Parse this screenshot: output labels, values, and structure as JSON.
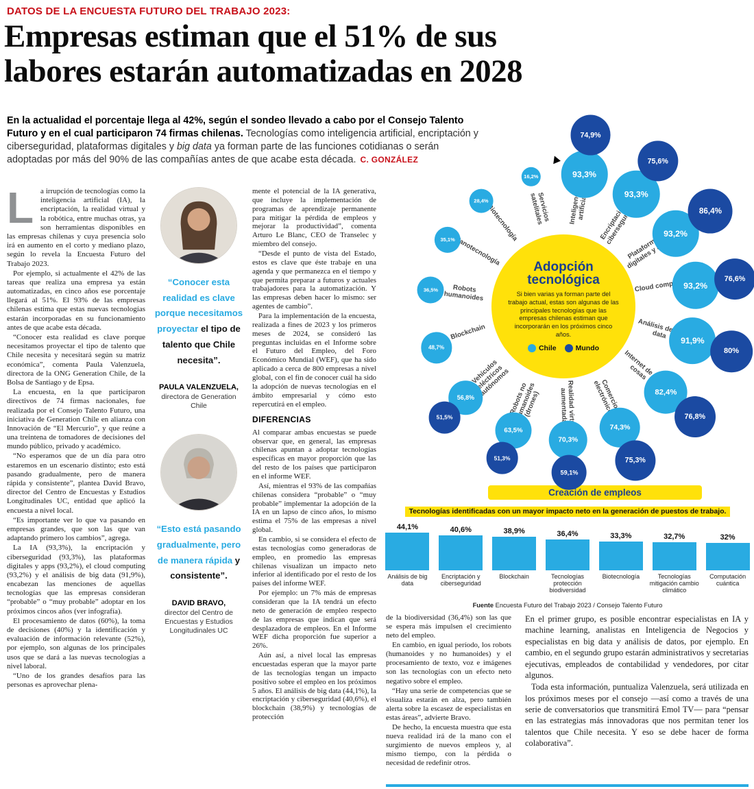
{
  "kicker": "DATOS DE LA ENCUESTA FUTURO DEL TRABAJO 2023:",
  "headline": "Empresas estiman que el 51% de sus\nlabores estarán automatizadas en 2028",
  "lead": {
    "bold": "En la actualidad el porcentaje llega al 42%, según el sondeo llevado a cabo por el Consejo Talento Futuro y en el cual participaron 74 firmas chilenas.",
    "regular_1": " Tecnologías como inteligencia artificial, encriptación y ciberseguridad, plataformas digitales y ",
    "italic": "big data",
    "regular_2": " ya forman parte de las funciones cotidianas o serán adoptadas por más del 90% de las compañías antes de que acabe esta década.",
    "byline": "C. GONZÁLEZ"
  },
  "columns": {
    "dropcap": "L",
    "col1": [
      "a irrupción de tecnologías como la inteligencia artificial (IA), la encriptación, la realidad virtual y la robótica, entre muchas otras, ya son herramientas disponibles en las empresas chilenas y cuya presencia solo irá en aumento en el corto y mediano plazo, según lo revela la Encuesta Futuro del Trabajo 2023.",
      "Por ejemplo, si actualmente el 42% de las tareas que realiza una empresa ya están automatizadas, en cinco años ese porcentaje llegará al 51%. El 93% de las empresas chilenas estima que estas nuevas tecnologías estarán incorporadas en su funcionamiento antes de que acabe esta década.",
      "“Conocer esta realidad es clave porque necesitamos proyectar el tipo de talento que Chile necesita y necesitará según su matriz económica”, comenta Paula Valenzuela, directora de la ONG Generation Chile, de la Bolsa de Santiago y de Epsa.",
      "La encuesta, en la que participaron directivos de 74 firmas nacionales, fue realizada por el Consejo Talento Futuro, una iniciativa de Generation Chile en alianza con Innovación de “El Mercurio”, y que reúne a una treintena de tomadores de decisiones del mundo público, privado y académico.",
      "“No esperamos que de un día para otro estaremos en un escenario distinto; esto está pasando gradualmente, pero de manera rápida y consistente”, plantea David Bravo, director del Centro de Encuestas y Estudios Longitudinales UC, entidad que aplicó la encuesta a nivel local.",
      "“Es importante ver lo que va pasando en empresas grandes, que son las que van adaptando primero los cambios”, agrega.",
      "La IA (93,3%), la encriptación y ciberseguridad (93,3%), las plataformas digitales y apps (93,2%), el cloud computing (93,2%) y el análisis de big data (91,9%), encabezan las menciones de aquellas tecnologías que las empresas consideran “probable” o “muy probable” adoptar en los próximos cincos años (ver infografía).",
      "El procesamiento de datos (60%), la toma de decisiones (40%) y la identificación y evaluación de información relevante (52%), por ejemplo, son algunas de los principales usos que se dará a las nuevas tecnologías a nivel laboral.",
      "“Uno de los grandes desafíos para las personas es aprovechar plena-"
    ],
    "col3_before": [
      "mente el potencial de la IA generativa, que incluye la implementación de programas de aprendizaje permanente para mitigar la pérdida de empleos y mejorar la productividad”, comenta Arturo Le Blanc, CEO de Transelec y miembro del consejo.",
      "“Desde el punto de vista del Estado, estos es clave que éste trabaje en una agenda y que permanezca en el tiempo y que permita preparar a futuros y actuales trabajadores para la automatización. Y las empresas deben hacer lo mismo: ser agentes de cambio”.",
      "Para la implementación de la encuesta, realizada a fines de 2023 y los primeros meses de 2024, se consideró las preguntas incluidas en el Informe sobre el Futuro del Empleo, del Foro Económico Mundial (WEF), que ha sido aplicado a cerca de 800 empresas a nivel global, con el fin de conocer cuál ha sido la adopción de nuevas tecnologías en el ámbito empresarial y cómo esto repercutirá en el empleo."
    ],
    "subhead": "DIFERENCIAS",
    "col3_after": [
      "Al comparar ambas encuestas se puede observar que, en general, las empresas chilenas apuntan a adoptar tecnologías específicas en mayor proporción que las del resto de los países que participaron en el informe WEF.",
      "Así, mientras el 93% de las compañías chilenas considera “probable” o “muy probable” implementar la adopción de la IA en un lapso de cinco años, lo mismo estima el 75% de las empresas a nivel global.",
      "En cambio, si se considera el efecto de estas tecnologías como generadoras de empleo, en promedio las empresas chilenas visualizan un impacto neto inferior al identificado por el resto de los países del informe WEF.",
      "Por ejemplo: un 7% más de empresas consideran que la IA tendrá un efecto neto de generación de empleo respecto de las empresas que indican que será desplazadora de empleos. En el Informe WEF dicha proporción fue superior a 26%.",
      "Aún así, a nivel local las empresas encuestadas esperan que la mayor parte de las tecnologías tengan un impacto positivo sobre el empleo en los próximos 5 años. El análisis de big data (44,1%), la encriptación y ciberseguridad (40,6%), el blockchain (38,9%) y tecnologías de protección"
    ],
    "col4": [
      "de la biodiversidad (36,4%) son las que se espera más impulsen el crecimiento neto del empleo.",
      "En cambio, en igual período, los robots (humanoides y no humanoides) y el procesamiento de texto, voz e imágenes son las tecnologías con un efecto neto negativo sobre el empleo.",
      "“Hay una serie de competencias que se visualiza estarán en alza, pero también alerta sobre la escasez de especialistas en estas áreas”, advierte Bravo.",
      "De hecho, la encuesta muestra que esta nueva realidad irá de la mano con el surgimiento de nuevos empleos y, al mismo tiempo, con la pérdida o necesidad de redefinir otros."
    ],
    "col5": [
      "En el primer grupo, es posible encontrar especialistas en IA y machine learning, analistas en Inteligencia de Negocios y especialistas en big data y análisis de datos, por ejemplo. En cambio, en el segundo grupo estarán administrativos y secretarias ejecutivas, empleados de contabilidad y vendedores, por citar algunos.",
      "Toda esta información, puntualiza Valenzuela, será utilizada en los próximos meses por el consejo —así como a través de una serie de conversatorios que transmitirá Emol TV— para “pensar en las estrategias más innovadoras que nos permitan tener los talentos que Chile necesita. Y eso se debe hacer de forma colaborativa”."
    ]
  },
  "quotes": [
    {
      "highlight": "“Conocer esta realidad es clave porque necesitamos proyectar",
      "rest": " el tipo de talento que Chile necesita”.",
      "name": "PAULA VALENZUELA,",
      "role": "directora de Generation Chile"
    },
    {
      "highlight": "“Esto está pasando gradualmente, pero de manera rápida",
      "rest": " y consistente”.",
      "name": "DAVID BRAVO,",
      "role": "director del Centro de Encuestas y Estudios Longitudinales UC"
    }
  ],
  "colors": {
    "chile": "#29abe2",
    "mundo": "#1b4aa2",
    "yellow": "#ffe10a",
    "red": "#c8101a",
    "navy_text": "#1b3f8f"
  },
  "chart_data": [
    {
      "type": "scatter",
      "title": "Adopción tecnológica",
      "title_display": "Adopción\ntecnológica",
      "description": "Si bien varias ya forman parte del trabajo actual, estas son algunas de las principales tecnologías que las empresas chilenas estiman que incorporarán en los próximos cinco años.",
      "unit": "%",
      "legend": [
        {
          "name": "Chile",
          "color": "#29abe2"
        },
        {
          "name": "Mundo",
          "color": "#1b4aa2"
        }
      ],
      "items": [
        {
          "name": "Servicios satelitales",
          "chile": 16.2,
          "mundo": null,
          "angle": -14
        },
        {
          "name": "Inteligencia artificial",
          "chile": 93.3,
          "mundo": 74.9,
          "angle": 9
        },
        {
          "name": "Encriptación y ciberseguridad",
          "chile": 93.3,
          "mundo": 75.6,
          "angle": 33
        },
        {
          "name": "Plataformas digitales y apps",
          "chile": 93.2,
          "mundo": 86.4,
          "angle": 57
        },
        {
          "name": "Cloud computing",
          "chile": 93.2,
          "mundo": 76.6,
          "angle": 81
        },
        {
          "name": "Análisis de big data",
          "chile": 91.9,
          "mundo": 80,
          "angle": 105
        },
        {
          "name": "Internet de las cosas",
          "chile": 82.4,
          "mundo": 76.8,
          "angle": 130
        },
        {
          "name": "Comercio electrónico",
          "chile": 74.3,
          "mundo": 75.3,
          "angle": 155
        },
        {
          "name": "Realidad virtual aumentada",
          "chile": 70.3,
          "mundo": 59.1,
          "angle": 178
        },
        {
          "name": "Robots no humanoides (drones)",
          "chile": 63.5,
          "mundo": 51.3,
          "angle": 202
        },
        {
          "name": "Vehículos eléctricos autónomos",
          "chile": 56.8,
          "mundo": 51.5,
          "angle": 227
        },
        {
          "name": "Blockchain",
          "chile": 48.7,
          "mundo": null,
          "angle": 252
        },
        {
          "name": "Robots humanoides",
          "chile": 36.5,
          "mundo": null,
          "angle": 277
        },
        {
          "name": "Nanotecnología",
          "chile": 35.1,
          "mundo": null,
          "angle": 300
        },
        {
          "name": "Biotecnología",
          "chile": 28.4,
          "mundo": null,
          "angle": 322
        }
      ]
    },
    {
      "type": "bar",
      "title": "Creación de empleos",
      "subtitle": "Tecnologías identificadas con un mayor impacto neto en la generación de puestos de trabajo.",
      "unit": "%",
      "ylim": [
        0,
        50
      ],
      "items": [
        {
          "label": "Análisis de big data",
          "value": 44.1
        },
        {
          "label": "Encriptación y ciberseguridad",
          "value": 40.6
        },
        {
          "label": "Blockchain",
          "value": 38.9
        },
        {
          "label": "Tecnologías protección biodiversidad",
          "value": 36.4
        },
        {
          "label": "Biotecnología",
          "value": 33.3
        },
        {
          "label": "Tecnologías mitigación cambio climático",
          "value": 32.7
        },
        {
          "label": "Computación cuántica",
          "value": 32
        }
      ],
      "source_label": "Fuente",
      "source_text": "Encuesta Futuro del Trabajo 2023 / Consejo Talento Futuro"
    }
  ]
}
